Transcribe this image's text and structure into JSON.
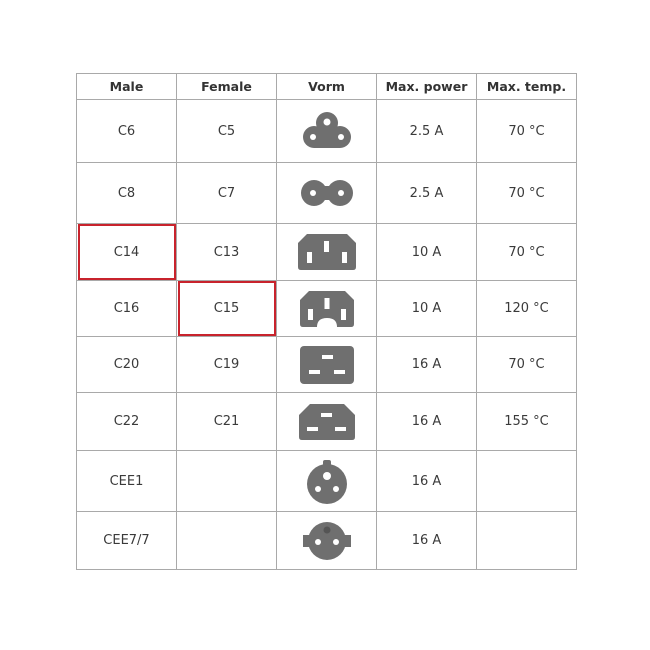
{
  "headers": [
    "Male",
    "Female",
    "Vorm",
    "Max. power",
    "Max. temp."
  ],
  "rows": [
    {
      "male": "C6",
      "female": "C5",
      "shape_icon": "c5-cloverleaf-connector-icon",
      "power": "2.5 A",
      "temp": "70 °C"
    },
    {
      "male": "C8",
      "female": "C7",
      "shape_icon": "c7-figure-eight-connector-icon",
      "power": "2.5 A",
      "temp": "70 °C"
    },
    {
      "male": "C14",
      "female": "C13",
      "shape_icon": "c13-connector-icon",
      "power": "10 A",
      "temp": "70 °C",
      "highlight": "male"
    },
    {
      "male": "C16",
      "female": "C15",
      "shape_icon": "c15-notched-connector-icon",
      "power": "10 A",
      "temp": "120 °C",
      "highlight": "female"
    },
    {
      "male": "C20",
      "female": "C19",
      "shape_icon": "c19-connector-icon",
      "power": "16 A",
      "temp": "70 °C"
    },
    {
      "male": "C22",
      "female": "C21",
      "shape_icon": "c21-connector-icon",
      "power": "16 A",
      "temp": "155 °C"
    },
    {
      "male": "CEE1",
      "female": "",
      "shape_icon": "cee1-round-plug-icon",
      "power": "16 A",
      "temp": ""
    },
    {
      "male": "CEE7/7",
      "female": "",
      "shape_icon": "cee7-schuko-plug-icon",
      "power": "16 A",
      "temp": ""
    }
  ],
  "colors": {
    "icon": "#6f6f6f",
    "highlight": "#c8232c",
    "border": "#a9a9a9"
  }
}
